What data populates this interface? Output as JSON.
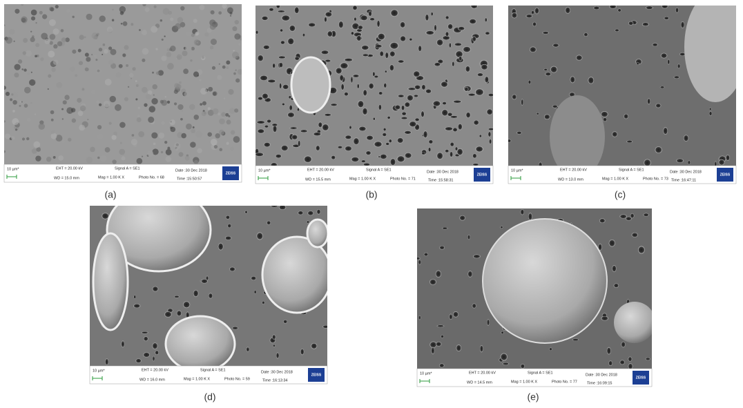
{
  "panels": [
    {
      "caption": "(a)",
      "scale": "10 µm*",
      "eht": "EHT = 20.00 kV",
      "wd": "WD = 15.0 mm",
      "signal": "Signal A = SE1",
      "mag": "Mag = 1.00 K X",
      "photo": "Photo No. = 68",
      "date": "Date :30 Dec 2018",
      "time": "Time :15:50:57",
      "logo": "ZEISS"
    },
    {
      "caption": "(b)",
      "scale": "10 µm*",
      "eht": "EHT = 20.00 kV",
      "wd": "WD = 15.5 mm",
      "signal": "Signal A = SE1",
      "mag": "Mag = 1.00 K X",
      "photo": "Photo No. = 71",
      "date": "Date :30 Dec 2018",
      "time": "Time :15:58:31",
      "logo": "ZEISS"
    },
    {
      "caption": "(c)",
      "scale": "10 µm*",
      "eht": "EHT = 20.00 kV",
      "wd": "WD = 13.0 mm",
      "signal": "Signal A = SE1",
      "mag": "Mag = 1.00 K X",
      "photo": "Photo No. = 73",
      "date": "Date :30 Dec 2018",
      "time": "Time :16:47:11",
      "logo": "ZEISS"
    },
    {
      "caption": "(d)",
      "scale": "10 µm*",
      "eht": "EHT = 20.00 kV",
      "wd": "WD = 16.0 mm",
      "signal": "Signal A = SE1",
      "mag": "Mag = 1.00 K X",
      "photo": "Photo No. = 59",
      "date": "Date :30 Dec 2018",
      "time": "Time :16:13:34",
      "logo": "ZEISS"
    },
    {
      "caption": "(e)",
      "scale": "10 µm*",
      "eht": "EHT = 20.00 kV",
      "wd": "WD = 14.5 mm",
      "signal": "Signal A = SE1",
      "mag": "Mag = 1.00 K X",
      "photo": "Photo No. = 77",
      "date": "Date :30 Dec 2018",
      "time": "Time :16:09:15",
      "logo": "ZEISS"
    }
  ]
}
